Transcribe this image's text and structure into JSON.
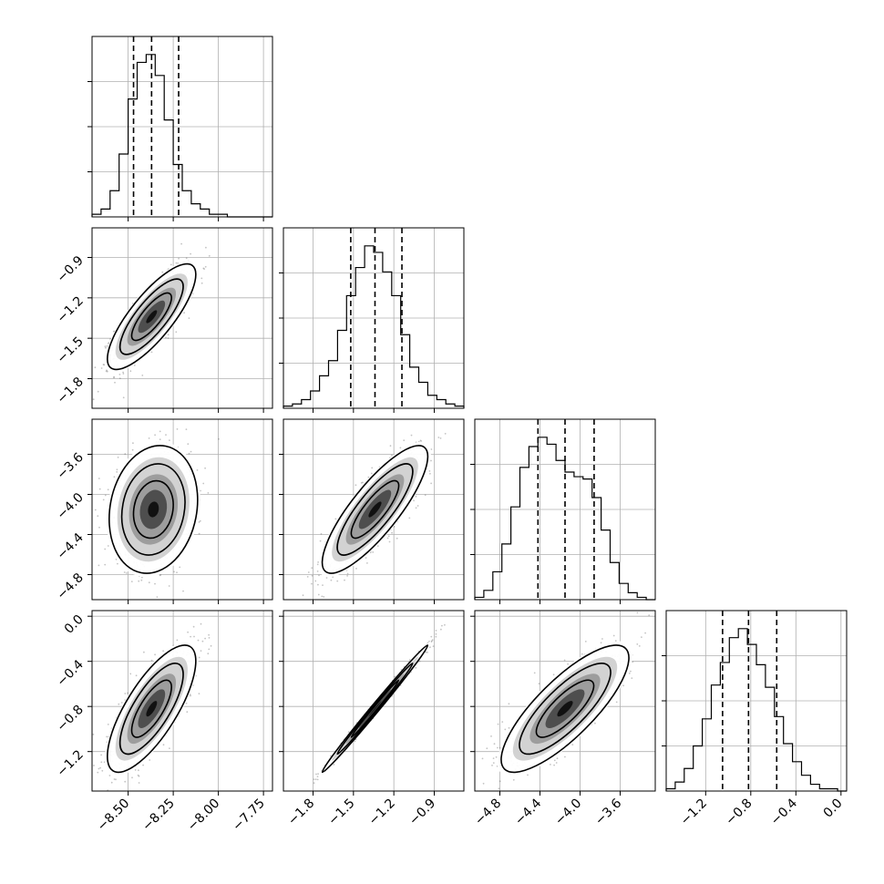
{
  "chart_data": {
    "type": "corner",
    "title": "",
    "parameters": [
      {
        "ticks": [
          -8.5,
          -8.25,
          -8.0,
          -7.75
        ],
        "tick_labels": [
          "−8.50",
          "−8.25",
          "−8.00",
          "−7.75"
        ],
        "range": [
          -8.7,
          -7.7
        ],
        "quantiles": [
          -8.47,
          -8.37,
          -8.22
        ]
      },
      {
        "ticks": [
          -1.8,
          -1.5,
          -1.2,
          -0.9
        ],
        "tick_labels": [
          "−1.8",
          "−1.5",
          "−1.2",
          "−0.9"
        ],
        "range": [
          -2.02,
          -0.68
        ],
        "quantiles": [
          -1.52,
          -1.34,
          -1.14
        ]
      },
      {
        "ticks": [
          -4.8,
          -4.4,
          -4.0,
          -3.6
        ],
        "tick_labels": [
          "−4.8",
          "−4.4",
          "−4.0",
          "−3.6"
        ],
        "range": [
          -5.05,
          -3.25
        ],
        "quantiles": [
          -4.42,
          -4.15,
          -3.86
        ]
      },
      {
        "ticks": [
          -1.2,
          -0.8,
          -0.4,
          0.0
        ],
        "tick_labels": [
          "−1.2",
          "−0.8",
          "−0.4",
          "0.0"
        ],
        "range": [
          -1.55,
          0.05
        ],
        "quantiles": [
          -1.05,
          -0.82,
          -0.57
        ]
      }
    ],
    "histograms": [
      {
        "bin_edges": [
          -8.7,
          -8.65,
          -8.6,
          -8.55,
          -8.5,
          -8.45,
          -8.4,
          -8.35,
          -8.3,
          -8.25,
          -8.2,
          -8.15,
          -8.1,
          -8.05,
          -8.0,
          -7.95,
          -7.9,
          -7.85,
          -7.8,
          -7.75,
          -7.7
        ],
        "counts": [
          1,
          3,
          10,
          24,
          45,
          59,
          62,
          54,
          37,
          20,
          10,
          5,
          3,
          1,
          1,
          0,
          0,
          0,
          0,
          0
        ]
      },
      {
        "bin_edges": [
          -2.02,
          -1.953,
          -1.886,
          -1.819,
          -1.752,
          -1.685,
          -1.618,
          -1.551,
          -1.484,
          -1.417,
          -1.35,
          -1.283,
          -1.216,
          -1.149,
          -1.082,
          -1.015,
          -0.948,
          -0.881,
          -0.814,
          -0.747,
          -0.68
        ],
        "counts": [
          1,
          2,
          4,
          8,
          15,
          22,
          36,
          52,
          65,
          75,
          72,
          63,
          52,
          34,
          19,
          12,
          6,
          4,
          2,
          1
        ]
      },
      {
        "bin_edges": [
          -5.05,
          -4.96,
          -4.87,
          -4.78,
          -4.69,
          -4.6,
          -4.51,
          -4.42,
          -4.33,
          -4.24,
          -4.15,
          -4.06,
          -3.97,
          -3.88,
          -3.79,
          -3.7,
          -3.61,
          -3.52,
          -3.43,
          -3.34,
          -3.25
        ],
        "counts": [
          1,
          4,
          12,
          24,
          40,
          57,
          66,
          70,
          67,
          60,
          55,
          53,
          52,
          44,
          30,
          16,
          7,
          3,
          1,
          0
        ]
      },
      {
        "bin_edges": [
          -1.55,
          -1.47,
          -1.39,
          -1.31,
          -1.23,
          -1.15,
          -1.07,
          -0.99,
          -0.91,
          -0.83,
          -0.75,
          -0.67,
          -0.59,
          -0.51,
          -0.43,
          -0.35,
          -0.27,
          -0.19,
          -0.11,
          -0.03,
          0.05
        ],
        "counts": [
          1,
          4,
          10,
          20,
          32,
          47,
          57,
          68,
          72,
          65,
          56,
          46,
          33,
          21,
          13,
          7,
          3,
          1,
          1,
          0
        ]
      }
    ],
    "joint_distributions": [
      {
        "pair": [
          0,
          1
        ],
        "mean": [
          -8.37,
          -1.34
        ],
        "std": [
          0.1,
          0.16
        ],
        "correlation": 0.8
      },
      {
        "pair": [
          0,
          2
        ],
        "mean": [
          -8.36,
          -4.15
        ],
        "std": [
          0.1,
          0.26
        ],
        "correlation": 0.15
      },
      {
        "pair": [
          1,
          2
        ],
        "mean": [
          -1.34,
          -4.15
        ],
        "std": [
          0.16,
          0.26
        ],
        "correlation": 0.83
      },
      {
        "pair": [
          0,
          3
        ],
        "mean": [
          -8.37,
          -0.82
        ],
        "std": [
          0.1,
          0.23
        ],
        "correlation": 0.75
      },
      {
        "pair": [
          1,
          3
        ],
        "mean": [
          -1.34,
          -0.82
        ],
        "std": [
          0.16,
          0.23
        ],
        "correlation": 0.995
      },
      {
        "pair": [
          2,
          3
        ],
        "mean": [
          -4.15,
          -0.82
        ],
        "std": [
          0.26,
          0.23
        ],
        "correlation": 0.8
      }
    ],
    "grid": true,
    "quantile_style": "dashed"
  }
}
